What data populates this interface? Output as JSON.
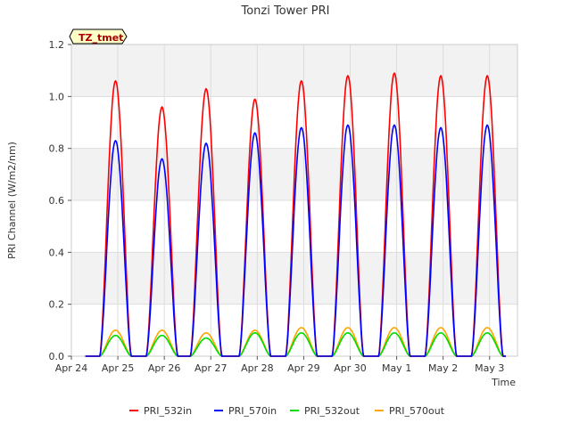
{
  "chart_data": {
    "type": "line",
    "title": "Tonzi Tower PRI",
    "xlabel": "Time",
    "ylabel": "PRI Channel (W/m2/nm)",
    "annotation": "TZ_tmet",
    "xlim": [
      0,
      9.6
    ],
    "ylim": [
      0,
      1.2
    ],
    "grid": true,
    "legend_position": "bottom",
    "x_ticks": [
      {
        "value": 0,
        "label": "Apr 24"
      },
      {
        "value": 1,
        "label": "Apr 25"
      },
      {
        "value": 2,
        "label": "Apr 26"
      },
      {
        "value": 3,
        "label": "Apr 27"
      },
      {
        "value": 4,
        "label": "Apr 28"
      },
      {
        "value": 5,
        "label": "Apr 29"
      },
      {
        "value": 6,
        "label": "Apr 30"
      },
      {
        "value": 7,
        "label": "May 1"
      },
      {
        "value": 8,
        "label": "May 2"
      },
      {
        "value": 9,
        "label": "May 3"
      }
    ],
    "y_ticks": [
      {
        "value": 0.0,
        "label": "0.0"
      },
      {
        "value": 0.2,
        "label": "0.2"
      },
      {
        "value": 0.4,
        "label": "0.4"
      },
      {
        "value": 0.6,
        "label": "0.6"
      },
      {
        "value": 0.8,
        "label": "0.8"
      },
      {
        "value": 1.0,
        "label": "1.0"
      },
      {
        "value": 1.2,
        "label": "1.2"
      }
    ],
    "day_peak_centers": [
      0.95,
      1.95,
      2.9,
      3.95,
      4.95,
      5.95,
      6.95,
      7.95,
      8.95
    ],
    "series": [
      {
        "name": "PRI_532in",
        "color": "#ff0000",
        "daily_peaks": [
          1.06,
          0.96,
          1.03,
          0.99,
          1.06,
          1.08,
          1.09,
          1.08,
          1.08
        ]
      },
      {
        "name": "PRI_570in",
        "color": "#0000ff",
        "daily_peaks": [
          0.83,
          0.76,
          0.82,
          0.86,
          0.88,
          0.89,
          0.89,
          0.88,
          0.89
        ]
      },
      {
        "name": "PRI_532out",
        "color": "#00dd00",
        "daily_peaks": [
          0.08,
          0.08,
          0.07,
          0.09,
          0.09,
          0.09,
          0.09,
          0.09,
          0.09
        ]
      },
      {
        "name": "PRI_570out",
        "color": "#ffa500",
        "daily_peaks": [
          0.1,
          0.1,
          0.09,
          0.1,
          0.11,
          0.11,
          0.11,
          0.11,
          0.11
        ]
      }
    ]
  }
}
